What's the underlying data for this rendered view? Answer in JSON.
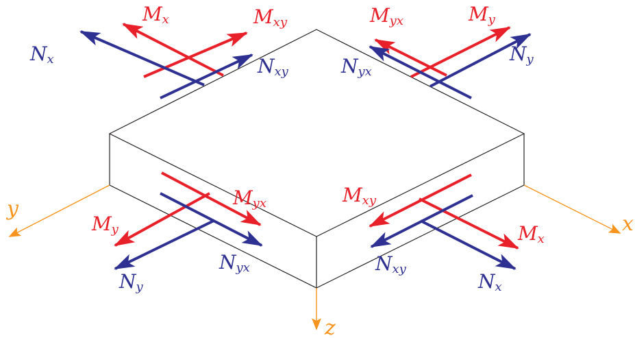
{
  "colors": {
    "moment": "#e8202a",
    "force": "#2e3192",
    "axis": "#f7941d",
    "plate": "#231f20"
  },
  "axes": {
    "x": "x",
    "y": "y",
    "z": "z"
  },
  "labels": {
    "top_left_Mx": {
      "main": "M",
      "sub": "x"
    },
    "top_left_Mxy": {
      "main": "M",
      "sub": "xy"
    },
    "top_left_Nx": {
      "main": "N",
      "sub": "x"
    },
    "top_left_Nxy": {
      "main": "N",
      "sub": "xy"
    },
    "top_right_Myx": {
      "main": "M",
      "sub": "yx"
    },
    "top_right_My": {
      "main": "M",
      "sub": "y"
    },
    "top_right_Nyx": {
      "main": "N",
      "sub": "yx"
    },
    "top_right_Ny": {
      "main": "N",
      "sub": "y"
    },
    "bottom_left_Myx": {
      "main": "M",
      "sub": "yx"
    },
    "bottom_left_My": {
      "main": "M",
      "sub": "y"
    },
    "bottom_left_Nyx": {
      "main": "N",
      "sub": "yx"
    },
    "bottom_left_Ny": {
      "main": "N",
      "sub": "y"
    },
    "bottom_right_Mxy": {
      "main": "M",
      "sub": "xy"
    },
    "bottom_right_Mx": {
      "main": "M",
      "sub": "x"
    },
    "bottom_right_Nxy": {
      "main": "N",
      "sub": "xy"
    },
    "bottom_right_Nx": {
      "main": "N",
      "sub": "x"
    }
  }
}
